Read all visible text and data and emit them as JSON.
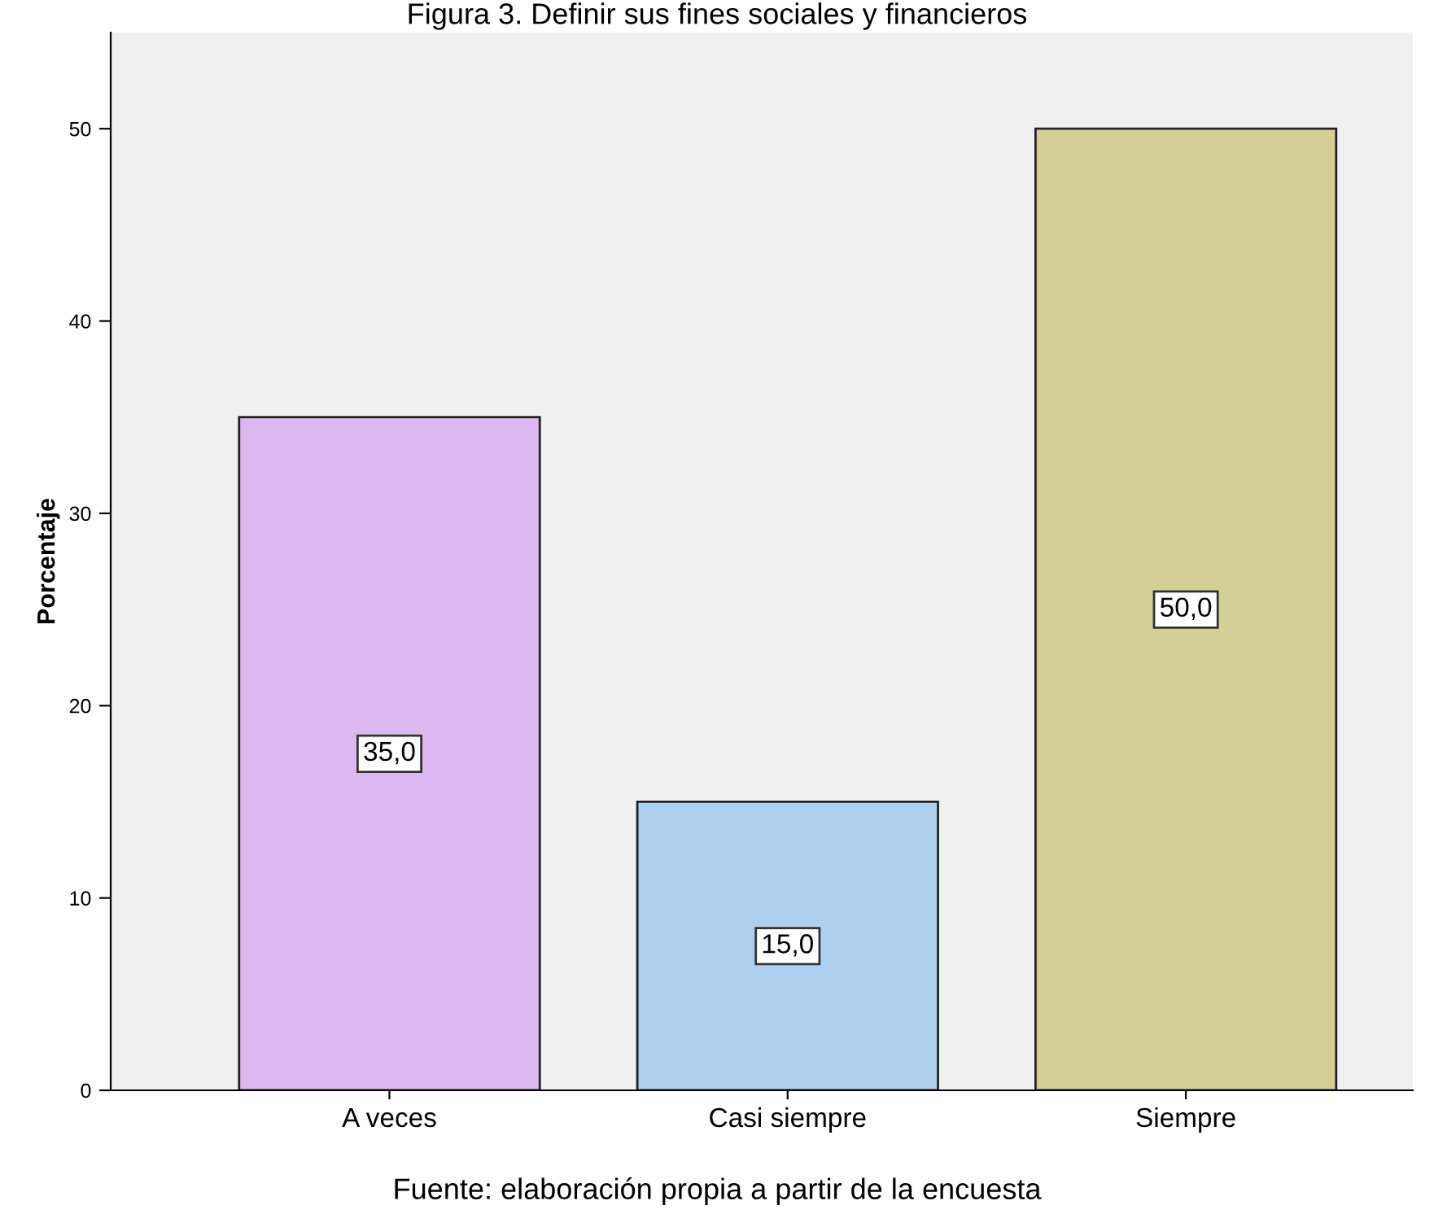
{
  "chart_data": {
    "type": "bar",
    "title": "Figura 3. Definir sus fines sociales y financieros",
    "ylabel": "Porcentaje",
    "categories": [
      "A veces",
      "Casi siempre",
      "Siempre"
    ],
    "values": [
      35.0,
      15.0,
      50.0
    ],
    "colors": [
      "#dcb8f0",
      "#aed0ee",
      "#d4cf96"
    ],
    "value_labels": [
      "35,0",
      "15,0",
      "50,0"
    ],
    "ylim": [
      0,
      55
    ],
    "yticks": [
      0,
      10,
      20,
      30,
      40,
      50
    ],
    "grid": false,
    "legend": false,
    "annotations": [
      "Fuente: elaboración propia a partir de la encuesta"
    ]
  }
}
